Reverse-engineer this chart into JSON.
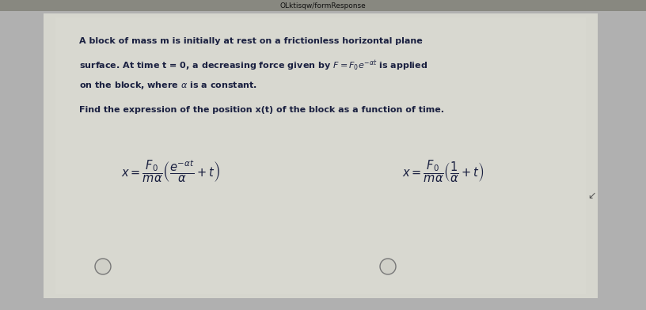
{
  "bg_outer": "#b0b0b0",
  "bg_page": "#c8c8c0",
  "bg_content": "#d0d0c8",
  "text_color": "#1a2040",
  "font_size_body": 8.0,
  "font_size_formula": 10.5,
  "line1": "A block of mass m is initially at rest on a frictionless horizontal plane",
  "line2": "surface. At time t = 0, a decreasing force given by $F = F_0e^{-\\alpha t}$ is applied",
  "line3": "on the block, where $\\alpha$ is a constant.",
  "line4": "Find the expression of the position x(t) of the block as a function of time.",
  "formula_left": "$x = \\dfrac{F_0}{m\\alpha}\\left(\\dfrac{e^{-\\alpha t}}{\\alpha} + t\\right)$",
  "formula_right": "$x = \\dfrac{F_0}{m\\alpha}\\left(\\dfrac{1}{\\alpha} + t\\right)$",
  "figsize": [
    8.16,
    3.92
  ],
  "dpi": 100
}
